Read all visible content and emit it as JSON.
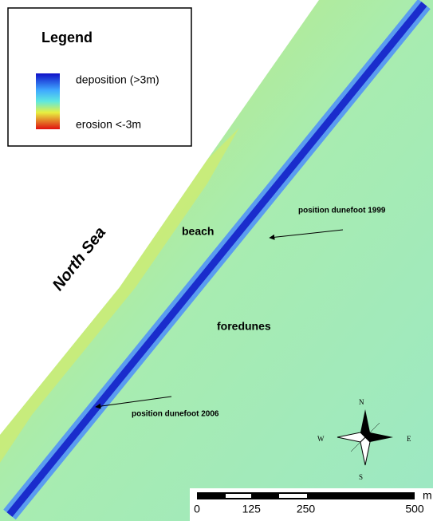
{
  "legend": {
    "title": "Legend",
    "high_label": "deposition (>3m)",
    "low_label": "erosion <-3m"
  },
  "labels": {
    "sea": "North Sea",
    "beach": "beach",
    "foredunes": "foredunes",
    "dunefoot_1999": "position dunefoot 1999",
    "dunefoot_2006": "position dunefoot 2006"
  },
  "compass": {
    "north": "N",
    "south": "S",
    "east": "E",
    "west": "W"
  },
  "scale_bar": {
    "ticks": [
      0,
      125,
      250,
      500
    ],
    "unit": "m"
  }
}
